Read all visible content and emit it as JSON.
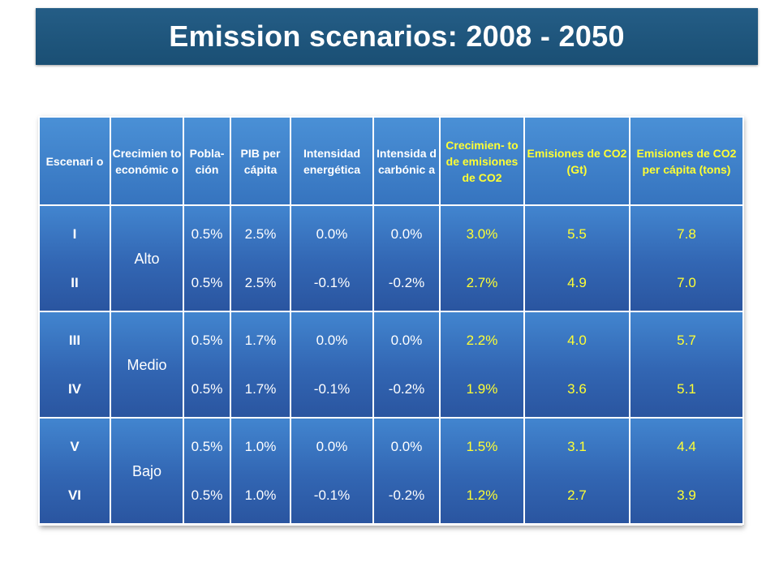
{
  "title": "Emission scenarios: 2008 - 2050",
  "table": {
    "headers": [
      {
        "text": "Escenari o",
        "yellow": false
      },
      {
        "text": "Crecimien to económic o",
        "yellow": false
      },
      {
        "text": "Pobla- ción",
        "yellow": false
      },
      {
        "text": "PIB per cápita",
        "yellow": false
      },
      {
        "text": "Intensidad energética",
        "yellow": false
      },
      {
        "text": "Intensida d carbónic a",
        "yellow": false
      },
      {
        "text": "Crecimien- to de emisiones de CO2",
        "yellow": true
      },
      {
        "text": "Emisiones de CO2 (Gt)",
        "yellow": true
      },
      {
        "text": "Emisiones de CO2 per cápita (tons)",
        "yellow": true
      }
    ],
    "groups": [
      {
        "growth": "Alto",
        "rows": [
          {
            "scenario": "I",
            "poblacion": "0.5%",
            "pib": "2.5%",
            "int_energetica": "0.0%",
            "int_carbonica": "0.0%",
            "crec_emisiones": "3.0%",
            "emisiones_gt": "5.5",
            "per_capita": "7.8"
          },
          {
            "scenario": "II",
            "poblacion": "0.5%",
            "pib": "2.5%",
            "int_energetica": "-0.1%",
            "int_carbonica": "-0.2%",
            "crec_emisiones": "2.7%",
            "emisiones_gt": "4.9",
            "per_capita": "7.0"
          }
        ]
      },
      {
        "growth": "Medio",
        "rows": [
          {
            "scenario": "III",
            "poblacion": "0.5%",
            "pib": "1.7%",
            "int_energetica": "0.0%",
            "int_carbonica": "0.0%",
            "crec_emisiones": "2.2%",
            "emisiones_gt": "4.0",
            "per_capita": "5.7"
          },
          {
            "scenario": "IV",
            "poblacion": "0.5%",
            "pib": "1.7%",
            "int_energetica": "-0.1%",
            "int_carbonica": "-0.2%",
            "crec_emisiones": "1.9%",
            "emisiones_gt": "3.6",
            "per_capita": "5.1"
          }
        ]
      },
      {
        "growth": "Bajo",
        "rows": [
          {
            "scenario": "V",
            "poblacion": "0.5%",
            "pib": "1.0%",
            "int_energetica": "0.0%",
            "int_carbonica": "0.0%",
            "crec_emisiones": "1.5%",
            "emisiones_gt": "3.1",
            "per_capita": "4.4"
          },
          {
            "scenario": "VI",
            "poblacion": "0.5%",
            "pib": "1.0%",
            "int_energetica": "-0.1%",
            "int_carbonica": "-0.2%",
            "crec_emisiones": "1.2%",
            "emisiones_gt": "2.7",
            "per_capita": "3.9"
          }
        ]
      }
    ]
  },
  "colors": {
    "title_bar": "#1f5a80",
    "table_fill": "#3a74c0",
    "highlight_text": "#ffff33",
    "text": "#ffffff"
  }
}
